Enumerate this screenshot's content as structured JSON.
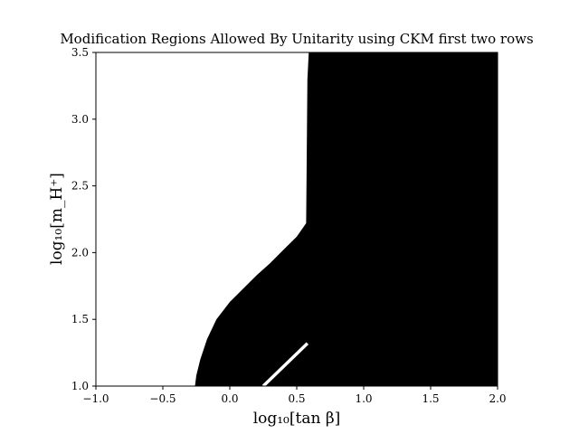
{
  "chart_data": {
    "type": "heatmap",
    "title": "Modification Regions Allowed By Unitarity using CKM first two rows",
    "xlabel": "log₁₀[tan β]",
    "ylabel": "log₁₀[m_H⁺]",
    "xlim": [
      -1.0,
      2.0
    ],
    "ylim": [
      1.0,
      3.5
    ],
    "x_ticks": [
      -1.0,
      -0.5,
      0.0,
      0.5,
      1.0,
      1.5,
      2.0
    ],
    "x_tick_labels": [
      "−1.0",
      "−0.5",
      "0.0",
      "0.5",
      "1.0",
      "1.5",
      "2.0"
    ],
    "y_ticks": [
      1.0,
      1.5,
      2.0,
      2.5,
      3.0,
      3.5
    ],
    "y_tick_labels": [
      "1.0",
      "1.5",
      "2.0",
      "2.5",
      "3.0",
      "3.5"
    ],
    "grid": false,
    "colors": {
      "allowed": "#000000",
      "background": "#ffffff"
    },
    "allowed_region_boundary": [
      [
        -0.26,
        1.0
      ],
      [
        -0.25,
        1.08
      ],
      [
        -0.22,
        1.2
      ],
      [
        -0.17,
        1.35
      ],
      [
        -0.1,
        1.5
      ],
      [
        0.0,
        1.63
      ],
      [
        0.1,
        1.73
      ],
      [
        0.2,
        1.83
      ],
      [
        0.3,
        1.92
      ],
      [
        0.4,
        2.02
      ],
      [
        0.5,
        2.12
      ],
      [
        0.57,
        2.22
      ],
      [
        0.58,
        3.3
      ],
      [
        0.59,
        3.5
      ],
      [
        2.0,
        3.5
      ],
      [
        2.0,
        1.0
      ]
    ],
    "excluded_strip": [
      [
        0.25,
        1.0
      ],
      [
        0.58,
        1.32
      ]
    ]
  }
}
